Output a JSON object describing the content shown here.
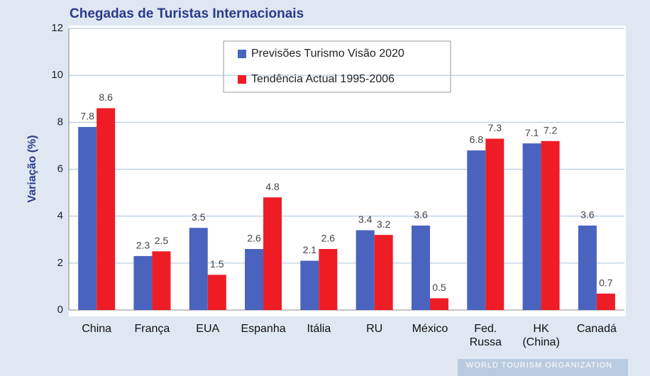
{
  "chart_data": {
    "type": "bar",
    "title": "Chegadas de Turistas Internacionais",
    "y_label": "Variação (%)",
    "categories": [
      "China",
      "França",
      "EUA",
      "Espanha",
      "Itália",
      "RU",
      "México",
      "Fed. Russa",
      "HK (China)",
      "Canadá"
    ],
    "series": [
      {
        "name": "Previsões Turismo Visão 2020",
        "color": "#4a63be",
        "values": [
          7.8,
          2.3,
          3.5,
          2.6,
          2.1,
          3.4,
          3.6,
          6.8,
          7.1,
          3.6
        ]
      },
      {
        "name": "Tendência Actual 1995-2006",
        "color": "#ee1c25",
        "values": [
          8.6,
          2.5,
          1.5,
          4.8,
          2.6,
          3.2,
          0.5,
          7.3,
          7.2,
          0.7
        ]
      }
    ],
    "ylim": [
      0,
      12
    ],
    "yticks": [
      0,
      2,
      4,
      6,
      8,
      10,
      12
    ],
    "grid": true,
    "legend": "top",
    "footer": "WORLD TOURISM ORGANIZATION"
  }
}
